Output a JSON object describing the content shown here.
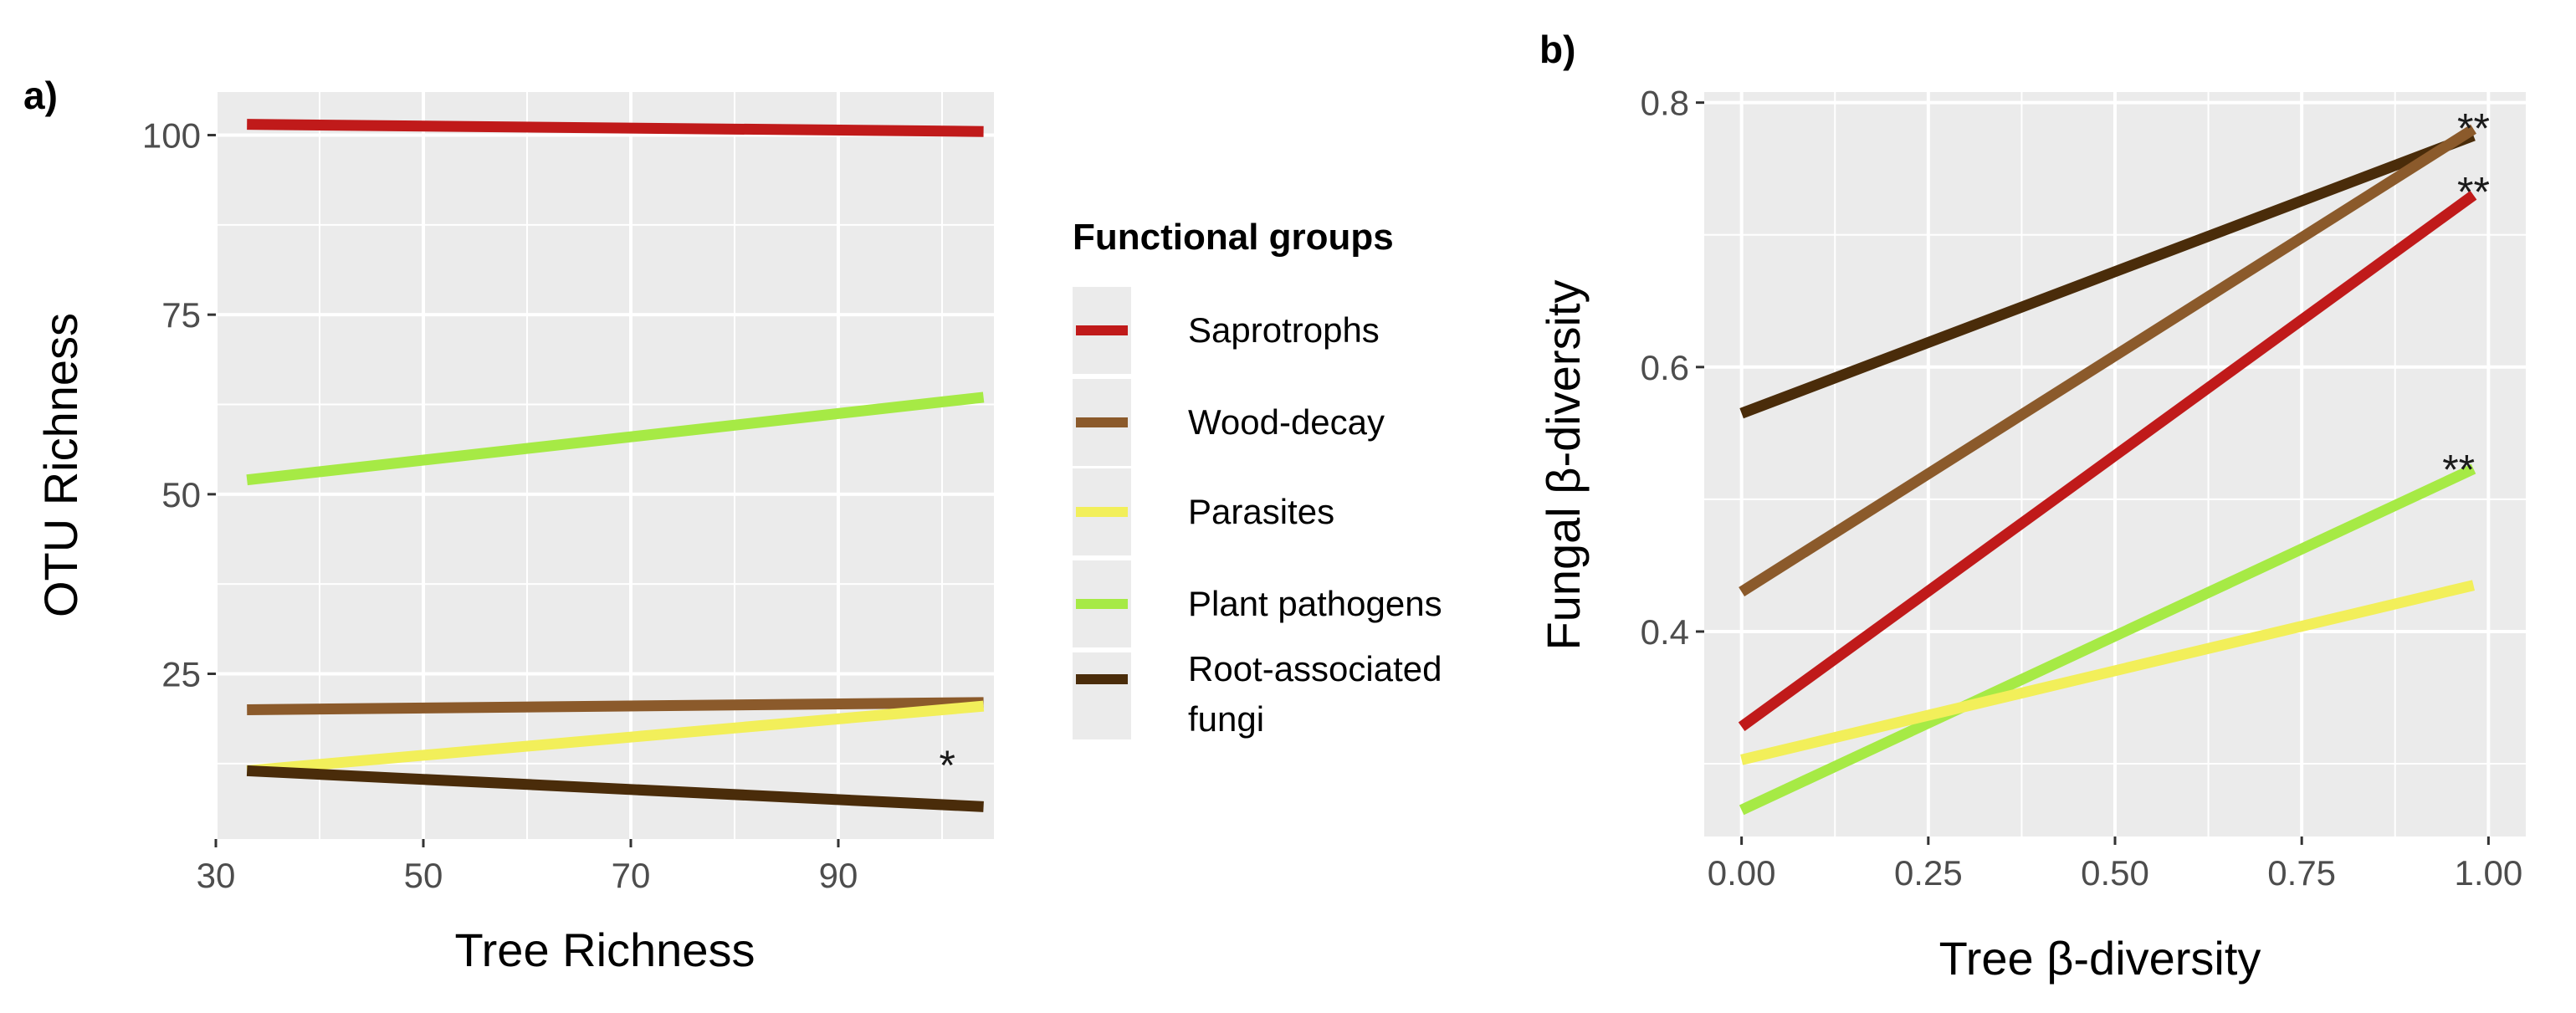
{
  "colors": {
    "Saprotrophs": "#c01a1a",
    "Wood-decay": "#8b5a2b",
    "Parasites": "#f2ef5a",
    "Plant pathogens": "#a6ea45",
    "Root-associated fungi": "#4a2c0a",
    "panel_bg": "#ebebeb",
    "grid": "#ffffff"
  },
  "legend": {
    "title": "Functional groups",
    "items": [
      {
        "key": "Saprotrophs",
        "lines": [
          "Saprotrophs"
        ]
      },
      {
        "key": "Wood-decay",
        "lines": [
          "Wood-decay"
        ]
      },
      {
        "key": "Parasites",
        "lines": [
          "Parasites"
        ]
      },
      {
        "key": "Plant pathogens",
        "lines": [
          "Plant pathogens"
        ]
      },
      {
        "key": "Root-associated fungi",
        "lines": [
          "Root-associated",
          "fungi"
        ]
      }
    ]
  },
  "chart_data": [
    {
      "panel": "a)",
      "type": "line",
      "xlabel": "Tree Richness",
      "ylabel": "OTU Richness",
      "xlim": [
        30,
        105
      ],
      "ylim": [
        2,
        106
      ],
      "xticks": [
        30,
        50,
        70,
        90
      ],
      "xticklabels": [
        "30",
        "50",
        "70",
        "90"
      ],
      "xminor": [
        40,
        60,
        80,
        100
      ],
      "yticks": [
        25,
        50,
        75,
        100
      ],
      "yticklabels": [
        "25",
        "50",
        "75",
        "100"
      ],
      "yminor": [
        12.5,
        37.5,
        62.5,
        87.5
      ],
      "grid": true,
      "series": [
        {
          "name": "Saprotrophs",
          "x": [
            33,
            104
          ],
          "y": [
            101.5,
            100.5
          ]
        },
        {
          "name": "Plant pathogens",
          "x": [
            33,
            104
          ],
          "y": [
            52,
            63.5
          ]
        },
        {
          "name": "Wood-decay",
          "x": [
            33,
            104
          ],
          "y": [
            20,
            21
          ]
        },
        {
          "name": "Parasites",
          "x": [
            33,
            104
          ],
          "y": [
            11.5,
            20.5
          ]
        },
        {
          "name": "Root-associated fungi",
          "x": [
            33,
            104
          ],
          "y": [
            11.5,
            6.5
          ]
        }
      ],
      "annotations": [
        {
          "text": "*",
          "x": 100.5,
          "y": 14
        }
      ]
    },
    {
      "panel": "b)",
      "type": "line",
      "xlabel": "Tree β-diversity",
      "ylabel": "Fungal β-diversity",
      "xlim": [
        -0.05,
        1.05
      ],
      "ylim": [
        0.245,
        0.808
      ],
      "xticks": [
        0,
        0.25,
        0.5,
        0.75,
        1
      ],
      "xticklabels": [
        "0.00",
        "0.25",
        "0.50",
        "0.75",
        "1.00"
      ],
      "xminor": [
        0.125,
        0.375,
        0.625,
        0.875
      ],
      "yticks": [
        0.4,
        0.6,
        0.8
      ],
      "yticklabels": [
        "0.4",
        "0.6",
        "0.8"
      ],
      "yminor": [
        0.3,
        0.5,
        0.7
      ],
      "grid": true,
      "series": [
        {
          "name": "Root-associated fungi",
          "x": [
            0,
            0.98
          ],
          "y": [
            0.565,
            0.775
          ]
        },
        {
          "name": "Wood-decay",
          "x": [
            0,
            0.98
          ],
          "y": [
            0.43,
            0.78
          ]
        },
        {
          "name": "Saprotrophs",
          "x": [
            0,
            0.98
          ],
          "y": [
            0.328,
            0.73
          ]
        },
        {
          "name": "Plant pathogens",
          "x": [
            0,
            0.98
          ],
          "y": [
            0.265,
            0.523
          ]
        },
        {
          "name": "Parasites",
          "x": [
            0,
            0.98
          ],
          "y": [
            0.303,
            0.435
          ]
        }
      ],
      "annotations": [
        {
          "text": "**",
          "x": 0.98,
          "y": 0.79
        },
        {
          "text": "**",
          "x": 0.98,
          "y": 0.742
        },
        {
          "text": "**",
          "x": 0.96,
          "y": 0.532
        }
      ]
    }
  ]
}
